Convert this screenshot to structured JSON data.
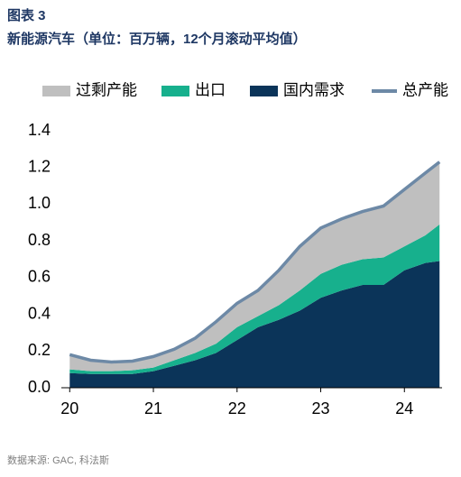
{
  "chart_data": {
    "type": "area",
    "title": "图表 3",
    "subtitle": "新能源汽车（单位：百万辆，12个月滚动平均值）",
    "source": "数据来源: GAC, 科法斯",
    "stacked": true,
    "x": [
      2020,
      2020.25,
      2020.5,
      2020.75,
      2021,
      2021.25,
      2021.5,
      2021.75,
      2022,
      2022.25,
      2022.5,
      2022.75,
      2023,
      2023.25,
      2023.5,
      2023.75,
      2024,
      2024.25,
      2024.42
    ],
    "series": [
      {
        "name": "过剩产能",
        "color": "#bfbfbf",
        "values": [
          0.08,
          0.06,
          0.05,
          0.05,
          0.06,
          0.06,
          0.08,
          0.12,
          0.13,
          0.14,
          0.19,
          0.24,
          0.25,
          0.25,
          0.26,
          0.28,
          0.31,
          0.34,
          0.34
        ]
      },
      {
        "name": "出口",
        "color": "#17b08d",
        "values": [
          0.02,
          0.015,
          0.015,
          0.02,
          0.02,
          0.03,
          0.04,
          0.05,
          0.07,
          0.06,
          0.08,
          0.11,
          0.13,
          0.14,
          0.14,
          0.15,
          0.13,
          0.15,
          0.2
        ]
      },
      {
        "name": "国内需求",
        "color": "#0b3459",
        "values": [
          0.08,
          0.075,
          0.075,
          0.075,
          0.09,
          0.12,
          0.15,
          0.19,
          0.26,
          0.33,
          0.37,
          0.42,
          0.49,
          0.53,
          0.56,
          0.56,
          0.64,
          0.68,
          0.69
        ]
      },
      {
        "name": "总产能",
        "color": "#6d89a6",
        "type": "line",
        "values": [
          0.18,
          0.15,
          0.14,
          0.145,
          0.17,
          0.21,
          0.27,
          0.36,
          0.46,
          0.53,
          0.64,
          0.77,
          0.87,
          0.92,
          0.96,
          0.99,
          1.08,
          1.17,
          1.23
        ]
      }
    ],
    "xlim": [
      2019.9,
      2024.45
    ],
    "xticks": [
      {
        "value": 2020,
        "label": "20"
      },
      {
        "value": 2021,
        "label": "21"
      },
      {
        "value": 2022,
        "label": "22"
      },
      {
        "value": 2023,
        "label": "23"
      },
      {
        "value": 2024,
        "label": "24"
      }
    ],
    "ylim": [
      0,
      1.4
    ],
    "yticks": [
      {
        "value": 0,
        "label": "0.0"
      },
      0.2,
      0.4,
      0.6,
      0.8,
      {
        "value": 1,
        "label": "1.0"
      },
      1.2,
      1.4
    ],
    "grid": false
  }
}
